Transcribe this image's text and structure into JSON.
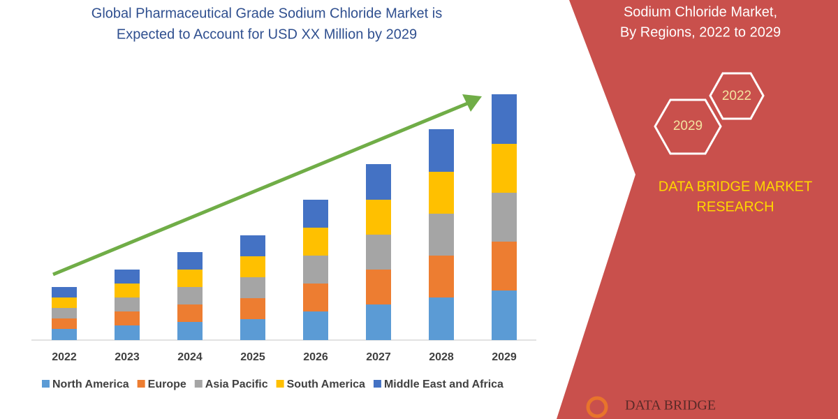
{
  "chart_data": {
    "type": "stacked_bar",
    "title": [
      "Global Pharmaceutical Grade Sodium Chloride Market is",
      "Expected to Account for USD XX Million by 2029"
    ],
    "categories": [
      "2022",
      "2023",
      "2024",
      "2025",
      "2026",
      "2027",
      "2028",
      "2029"
    ],
    "series": [
      {
        "name": "North America",
        "color": "#5b9bd5",
        "values": [
          16,
          21,
          26,
          30,
          41,
          51,
          61,
          71
        ]
      },
      {
        "name": "Europe",
        "color": "#ed7d31",
        "values": [
          15,
          20,
          25,
          30,
          40,
          50,
          60,
          70
        ]
      },
      {
        "name": "Asia Pacific",
        "color": "#a5a5a5",
        "values": [
          15,
          20,
          25,
          30,
          40,
          50,
          60,
          70
        ]
      },
      {
        "name": "South America",
        "color": "#ffc000",
        "values": [
          15,
          20,
          25,
          30,
          40,
          50,
          60,
          70
        ]
      },
      {
        "name": "Middle East and Africa",
        "color": "#4472c4",
        "values": [
          15,
          20,
          25,
          30,
          40,
          51,
          61,
          71
        ]
      }
    ],
    "ylim": [
      0,
      360
    ]
  },
  "side_panel": {
    "title": [
      "Sodium Chloride Market,",
      "By Regions, 2022 to 2029"
    ],
    "hexagons": [
      "2022",
      "2029"
    ],
    "brand": [
      "DATA BRIDGE MARKET",
      "RESEARCH"
    ],
    "logo": "DATA BRIDGE"
  }
}
